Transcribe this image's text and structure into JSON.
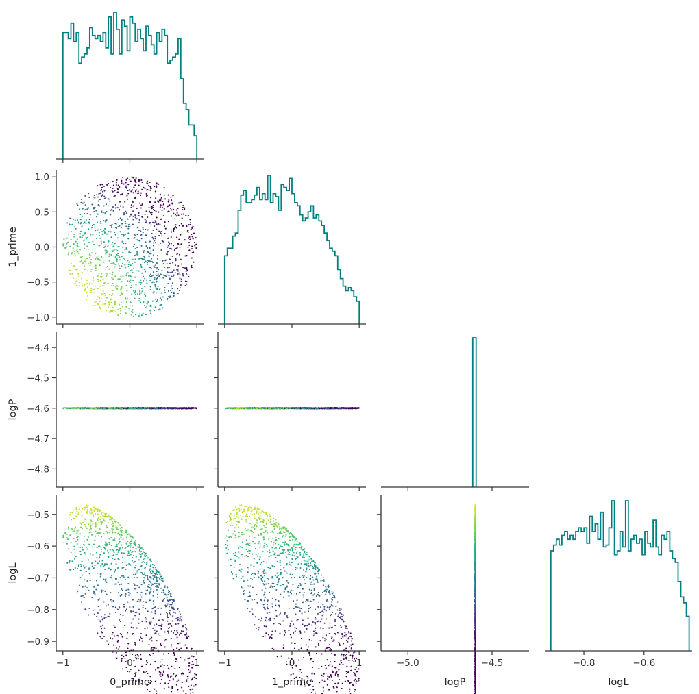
{
  "chart_data": {
    "type": "corner-plot",
    "variables": [
      "0_prime",
      "1_prime",
      "logP",
      "logL"
    ],
    "colors": {
      "histogram": "#008080",
      "axis": "#333333",
      "colormap": "viridis"
    },
    "axes": {
      "0_prime": {
        "range": [
          -1.1,
          1.1
        ],
        "ticks": [
          -1,
          0,
          1
        ],
        "tick_labels": [
          "−1",
          "0",
          "1"
        ]
      },
      "1_prime": {
        "range": [
          -1.1,
          1.1
        ],
        "ticks": [
          -1,
          0,
          1
        ],
        "tick_labels": [
          "−1",
          "0",
          "1"
        ],
        "y_ticks": [
          -1.0,
          -0.5,
          0.0,
          0.5,
          1.0
        ],
        "y_tick_labels": [
          "−1.0",
          "−0.5",
          "0.0",
          "0.5",
          "1.0"
        ]
      },
      "logP": {
        "range": [
          -4.86,
          -4.35
        ],
        "x_range": [
          -5.16,
          -4.28
        ],
        "ticks": [
          -5.0,
          -4.5
        ],
        "tick_labels": [
          "−5.0",
          "−4.5"
        ],
        "y_ticks": [
          -4.8,
          -4.7,
          -4.6,
          -4.5,
          -4.4
        ],
        "y_tick_labels": [
          "−4.8",
          "−4.7",
          "−4.6",
          "−4.5",
          "−4.4"
        ]
      },
      "logL": {
        "range": [
          -0.93,
          -0.44
        ],
        "ticks": [
          -0.8,
          -0.6
        ],
        "tick_labels": [
          "−0.8",
          "−0.6"
        ],
        "y_ticks": [
          -0.9,
          -0.8,
          -0.7,
          -0.6,
          -0.5
        ],
        "y_tick_labels": [
          "−0.9",
          "−0.8",
          "−0.7",
          "−0.6",
          "−0.5"
        ]
      }
    },
    "histograms": {
      "0_prime": {
        "range": [
          -1,
          1
        ],
        "bins": 50,
        "counts": [
          0.82,
          0.82,
          0.78,
          0.88,
          0.76,
          0.82,
          0.62,
          0.66,
          0.68,
          0.72,
          0.85,
          0.8,
          0.78,
          0.8,
          0.76,
          0.82,
          0.72,
          0.92,
          0.68,
          0.95,
          0.84,
          0.68,
          0.9,
          0.86,
          0.7,
          0.92,
          0.88,
          0.76,
          0.84,
          0.78,
          0.7,
          0.86,
          0.8,
          0.74,
          0.68,
          0.82,
          0.76,
          0.84,
          0.8,
          0.62,
          0.64,
          0.66,
          0.68,
          0.78,
          0.52,
          0.36,
          0.32,
          0.22,
          0.22,
          0.15
        ]
      },
      "1_prime": {
        "range": [
          -1,
          1
        ],
        "bins": 50,
        "counts": [
          0.45,
          0.5,
          0.5,
          0.58,
          0.6,
          0.75,
          0.85,
          0.88,
          0.8,
          0.8,
          0.82,
          0.85,
          0.9,
          0.82,
          0.86,
          0.82,
          0.98,
          0.8,
          0.86,
          0.84,
          0.75,
          0.92,
          0.9,
          0.88,
          0.96,
          0.86,
          0.8,
          0.78,
          0.72,
          0.68,
          0.7,
          0.74,
          0.78,
          0.7,
          0.72,
          0.68,
          0.65,
          0.6,
          0.55,
          0.5,
          0.48,
          0.45,
          0.36,
          0.3,
          0.25,
          0.22,
          0.24,
          0.22,
          0.18,
          0.15
        ]
      },
      "logP": {
        "range": [
          -4.615,
          -4.595
        ],
        "bins": 1,
        "counts": [
          1.0
        ]
      },
      "logL": {
        "range": [
          -0.91,
          -0.45
        ],
        "bins": 50,
        "counts": [
          0.52,
          0.55,
          0.58,
          0.55,
          0.6,
          0.62,
          0.58,
          0.6,
          0.58,
          0.62,
          0.64,
          0.62,
          0.64,
          0.56,
          0.7,
          0.62,
          0.66,
          0.58,
          0.72,
          0.54,
          0.55,
          0.64,
          0.78,
          0.5,
          0.52,
          0.62,
          0.54,
          0.78,
          0.52,
          0.58,
          0.6,
          0.56,
          0.58,
          0.5,
          0.62,
          0.56,
          0.54,
          0.68,
          0.54,
          0.5,
          0.6,
          0.58,
          0.62,
          0.52,
          0.48,
          0.46,
          0.36,
          0.28,
          0.25,
          0.18
        ]
      }
    },
    "scatter": {
      "n_points": 1200,
      "support": "0_prime^2 + 1_prime^2 ≤ 1, 0_prime ≥ -1, 1_prime ≥ -1",
      "logP_value": -4.6,
      "logL_relation": "logL = -0.45 - 0.45 * ((1 + 0_prime)^2 + (1 + 1_prime)^2) / 4",
      "color_by": "logL"
    }
  }
}
